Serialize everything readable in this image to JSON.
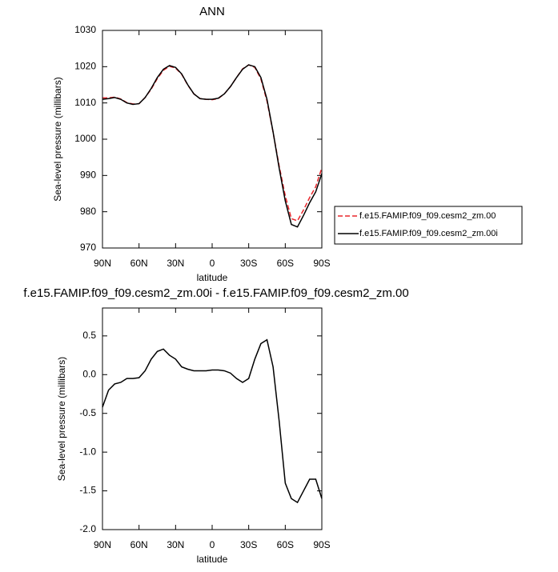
{
  "chart_data": [
    {
      "type": "line",
      "title": "ANN",
      "xlabel": "latitude",
      "ylabel": "Sea-level pressure (millibars)",
      "x": [
        90,
        85,
        80,
        75,
        70,
        65,
        60,
        55,
        50,
        45,
        40,
        35,
        30,
        25,
        20,
        15,
        10,
        5,
        0,
        -5,
        -10,
        -15,
        -20,
        -25,
        -30,
        -35,
        -40,
        -45,
        -50,
        -55,
        -60,
        -65,
        -70,
        -75,
        -80,
        -85,
        -90
      ],
      "xlim": [
        90,
        -90
      ],
      "xticks": [
        {
          "value": 90,
          "label": "90N"
        },
        {
          "value": 60,
          "label": "60N"
        },
        {
          "value": 30,
          "label": "30N"
        },
        0,
        {
          "value": -30,
          "label": "30S"
        },
        {
          "value": -60,
          "label": "60S"
        },
        {
          "value": -90,
          "label": "90S"
        }
      ],
      "ylim": [
        970,
        1030
      ],
      "yticks": [
        970,
        980,
        990,
        1000,
        1010,
        1020,
        1030
      ],
      "legend": "right",
      "series": [
        {
          "name": "f.e15.FAMIP.f09_f09.cesm2_zm.00",
          "color": "#e8262b",
          "dash": true,
          "values": [
            1011.4,
            1011.4,
            1011.6,
            1011.1,
            1010.1,
            1009.7,
            1009.8,
            1011.5,
            1013.8,
            1016.7,
            1019,
            1020.1,
            1019.6,
            1017.9,
            1014.9,
            1012.5,
            1011.2,
            1011,
            1010.9,
            1011.2,
            1012.5,
            1014.5,
            1017,
            1019.4,
            1020.5,
            1019.8,
            1016.6,
            1010.5,
            1001.9,
            992.6,
            984.4,
            978.1,
            977.5,
            980.5,
            983.9,
            986.9,
            992.1
          ]
        },
        {
          "name": "f.e15.FAMIP.f09_f09.cesm2_zm.00i",
          "color": "#000000",
          "dash": false,
          "values": [
            1011,
            1011.2,
            1011.5,
            1011,
            1010,
            1009.6,
            1009.8,
            1011.5,
            1014,
            1017,
            1019.3,
            1020.3,
            1019.8,
            1018,
            1015,
            1012.5,
            1011.2,
            1011,
            1011,
            1011.3,
            1012.5,
            1014.5,
            1017,
            1019.3,
            1020.5,
            1020,
            1017,
            1011,
            1002,
            992,
            983,
            976.5,
            975.8,
            979,
            982.5,
            985.5,
            990.5
          ]
        }
      ]
    },
    {
      "type": "line",
      "title": "f.e15.FAMIP.f09_f09.cesm2_zm.00i - f.e15.FAMIP.f09_f09.cesm2_zm.00",
      "xlabel": "latitude",
      "ylabel": "Sea-level pressure (millibars)",
      "x": [
        90,
        85,
        80,
        75,
        70,
        65,
        60,
        55,
        50,
        45,
        40,
        35,
        30,
        25,
        20,
        15,
        10,
        5,
        0,
        -5,
        -10,
        -15,
        -20,
        -25,
        -30,
        -35,
        -40,
        -45,
        -50,
        -55,
        -60,
        -65,
        -70,
        -75,
        -80,
        -85,
        -90
      ],
      "xlim": [
        90,
        -90
      ],
      "xticks": [
        {
          "value": 90,
          "label": "90N"
        },
        {
          "value": 60,
          "label": "60N"
        },
        {
          "value": 30,
          "label": "30N"
        },
        0,
        {
          "value": -30,
          "label": "30S"
        },
        {
          "value": -60,
          "label": "60S"
        },
        {
          "value": -90,
          "label": "90S"
        }
      ],
      "ylim": [
        -2.0,
        0.86
      ],
      "yticks": [
        {
          "value": -2,
          "label": "-2.0"
        },
        -1.5,
        {
          "value": -1,
          "label": "-1.0"
        },
        -0.5,
        {
          "value": 0,
          "label": "0.0"
        },
        0.5
      ],
      "color": "#000000",
      "values": [
        -0.42,
        -0.2,
        -0.12,
        -0.1,
        -0.05,
        -0.05,
        -0.04,
        0.05,
        0.2,
        0.3,
        0.33,
        0.25,
        0.2,
        0.1,
        0.07,
        0.05,
        0.05,
        0.05,
        0.06,
        0.06,
        0.05,
        0.02,
        -0.05,
        -0.1,
        -0.05,
        0.2,
        0.4,
        0.45,
        0.1,
        -0.6,
        -1.4,
        -1.6,
        -1.65,
        -1.5,
        -1.35,
        -1.35,
        -1.6
      ]
    }
  ]
}
